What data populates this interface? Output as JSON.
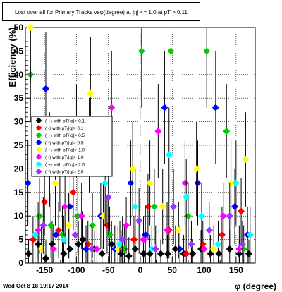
{
  "timestamp": "Wed Oct  8 18:19:17 2014",
  "chart_data": {
    "type": "scatter",
    "title": "Lost over all for Primary Tracks vsφ(degree) at |η| <= 1.0 at pT > 0.11",
    "xlabel": "φ (degree)",
    "ylabel": "Efficiency (%)",
    "xlim": [
      -180,
      180
    ],
    "ylim": [
      0,
      50
    ],
    "x_ticks": [
      -150,
      -100,
      -50,
      0,
      50,
      100,
      150
    ],
    "y_ticks": [
      0,
      5,
      10,
      15,
      20,
      25,
      30,
      35,
      40,
      45,
      50
    ],
    "grid": true,
    "legend_position": "left-middle",
    "series": [
      {
        "name": "( +) with pT/|q|> 0.1",
        "color": "#000000",
        "x": [
          -175,
          -160,
          -148,
          -138,
          -120,
          -110,
          -97,
          -90,
          -72,
          -60,
          -45,
          -30,
          -18,
          -8,
          5,
          15,
          32,
          43,
          55,
          68,
          82,
          95,
          110,
          123,
          140,
          155,
          170
        ],
        "y": [
          2,
          4,
          1,
          4,
          2,
          3,
          4,
          5,
          3,
          2,
          4,
          2,
          1.5,
          3,
          2,
          2,
          2,
          2,
          3,
          2,
          2,
          3,
          2,
          2,
          3,
          2,
          2
        ],
        "err": [
          3,
          6,
          4,
          5,
          4,
          5,
          5,
          6,
          4,
          3,
          5,
          4,
          4,
          5,
          4,
          4,
          3,
          4,
          5,
          4,
          3,
          4,
          4,
          3,
          4,
          3,
          3
        ]
      },
      {
        "name": "( -) with pT/|q|> 0.1",
        "color": "#ff0000",
        "x": [
          -168,
          -150,
          -128,
          -105,
          -82,
          -52,
          -30,
          -10,
          12,
          45,
          72,
          98,
          128,
          158
        ],
        "y": [
          5,
          13,
          7,
          15,
          4,
          8,
          3,
          5,
          12,
          7,
          2,
          4,
          6,
          11
        ],
        "err": [
          5,
          7,
          6,
          8,
          5,
          6,
          4,
          5,
          7,
          6,
          4,
          5,
          6,
          7
        ]
      },
      {
        "name": "( +) with pT/|q|> 0.5",
        "color": "#00cc00",
        "x": [
          -172,
          -158,
          -140,
          -122,
          -98,
          -75,
          -48,
          -25,
          2,
          22,
          48,
          75,
          104,
          135,
          162
        ],
        "y": [
          40,
          10,
          8,
          6,
          10,
          8,
          6,
          3,
          45,
          12,
          45,
          10,
          45,
          28,
          3
        ],
        "err": [
          10,
          8,
          7,
          6,
          8,
          7,
          6,
          5,
          12,
          8,
          12,
          7,
          12,
          10,
          5
        ]
      },
      {
        "name": "( -) with pT/|q|> 0.5",
        "color": "#0000ff",
        "x": [
          -176,
          -148,
          -132,
          -110,
          -85,
          -62,
          -40,
          -15,
          8,
          38,
          62,
          90,
          118,
          148,
          168
        ],
        "y": [
          17,
          37,
          6,
          12,
          3,
          10,
          3,
          17,
          6,
          33,
          3,
          17,
          33,
          12,
          6
        ],
        "err": [
          9,
          12,
          6,
          8,
          5,
          7,
          5,
          9,
          6,
          12,
          5,
          9,
          12,
          8,
          6
        ]
      },
      {
        "name": "( +) with pT/|q|> 1.0",
        "color": "#ffff00",
        "x": [
          -172,
          -155,
          -133,
          -112,
          -78,
          -58,
          -35,
          -12,
          15,
          35,
          60,
          88,
          115,
          142,
          165
        ],
        "y": [
          50,
          3,
          17,
          8,
          36,
          10,
          3,
          20,
          17,
          12,
          7,
          20,
          3,
          17,
          22
        ],
        "err": [
          12,
          5,
          9,
          7,
          12,
          7,
          5,
          10,
          9,
          8,
          6,
          10,
          5,
          9,
          10
        ]
      },
      {
        "name": "( -) with pT/|q|> 1.0",
        "color": "#ff00ff",
        "x": [
          -160,
          -136,
          -118,
          -92,
          -68,
          -45,
          -22,
          5,
          28,
          42,
          70,
          100,
          130,
          155
        ],
        "y": [
          7,
          3,
          12,
          10,
          3,
          33,
          8,
          5,
          28,
          7,
          17,
          3,
          10,
          3
        ],
        "err": [
          6,
          5,
          8,
          7,
          5,
          12,
          6,
          5,
          10,
          6,
          9,
          5,
          7,
          5
        ]
      },
      {
        "name": "( +) with pT/|q|> 2.0",
        "color": "#00ffff",
        "x": [
          -165,
          -142,
          -120,
          -100,
          -80,
          -55,
          -32,
          -8,
          18,
          45,
          72,
          96,
          122,
          150,
          172
        ],
        "y": [
          6,
          22,
          5,
          28,
          25,
          17,
          4,
          12,
          3,
          23,
          14,
          10,
          4,
          17,
          6
        ],
        "err": [
          6,
          10,
          5,
          10,
          10,
          9,
          5,
          8,
          5,
          10,
          8,
          7,
          5,
          9,
          6
        ]
      },
      {
        "name": "( -) with pT/|q|> 2.0",
        "color": "#9933ff",
        "x": [
          -152,
          -126,
          -102,
          -76,
          -50,
          -28,
          -2,
          24,
          52,
          80,
          108,
          140,
          160
        ],
        "y": [
          8,
          20,
          6,
          3,
          14,
          5,
          9,
          3,
          12,
          4,
          7,
          10,
          4
        ],
        "err": [
          6,
          9,
          6,
          5,
          8,
          5,
          7,
          5,
          8,
          5,
          6,
          7,
          5
        ]
      }
    ]
  }
}
